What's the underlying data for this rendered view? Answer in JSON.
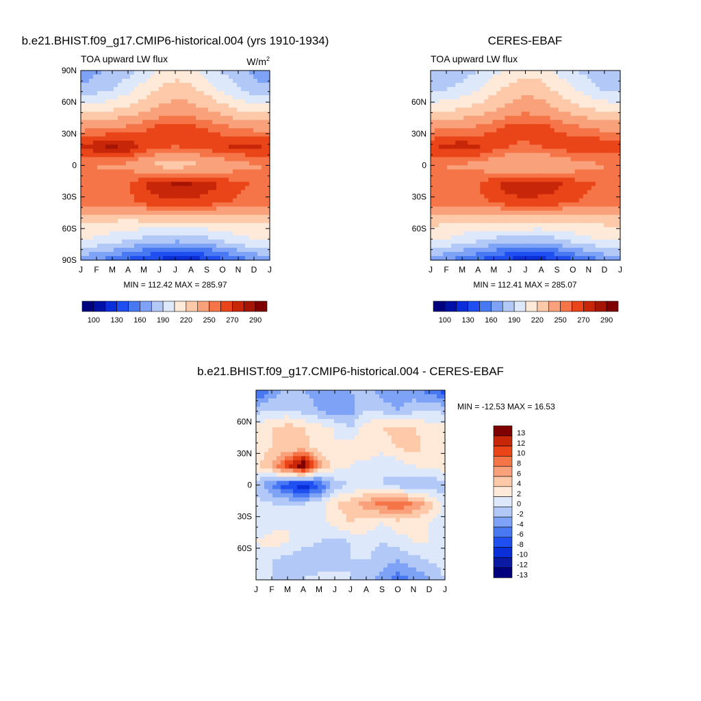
{
  "chart_data": [
    {
      "type": "heatmap",
      "id": "model",
      "title": "b.e21.BHIST.f09_g17.CMIP6-historical.004 (yrs 1910-1934)",
      "left_label": "TOA upward LW flux",
      "units_base": "W/m",
      "units_sup": "2",
      "stats": "MIN = 112.42 MAX = 285.97",
      "x_ticks": [
        "J",
        "F",
        "M",
        "A",
        "M",
        "J",
        "J",
        "A",
        "S",
        "O",
        "N",
        "D",
        "J"
      ],
      "y_ticks": [
        "90N",
        "60N",
        "30N",
        "0",
        "30S",
        "60S",
        "90S"
      ],
      "y_tick_values": [
        90,
        60,
        30,
        0,
        -30,
        -60,
        -90
      ],
      "colorbar_labels": [
        "100",
        "130",
        "160",
        "190",
        "220",
        "250",
        "270",
        "290"
      ],
      "field": [
        [
          165,
          172,
          178,
          185,
          195,
          205,
          212,
          208,
          198,
          188,
          180,
          170,
          165
        ],
        [
          178,
          183,
          190,
          200,
          212,
          222,
          228,
          225,
          214,
          202,
          192,
          182,
          178
        ],
        [
          212,
          214,
          218,
          222,
          230,
          238,
          242,
          240,
          234,
          226,
          218,
          213,
          212
        ],
        [
          246,
          247,
          249,
          252,
          258,
          263,
          265,
          263,
          259,
          254,
          249,
          246,
          246
        ],
        [
          270,
          278,
          282,
          278,
          268,
          262,
          260,
          262,
          266,
          270,
          272,
          271,
          270
        ],
        [
          250,
          249,
          248,
          246,
          238,
          230,
          228,
          230,
          234,
          240,
          245,
          248,
          250
        ],
        [
          258,
          258,
          257,
          260,
          270,
          278,
          283,
          282,
          276,
          268,
          262,
          259,
          258
        ],
        [
          255,
          254,
          255,
          257,
          262,
          265,
          267,
          266,
          264,
          261,
          258,
          256,
          255
        ],
        [
          222,
          220,
          218,
          216,
          218,
          219,
          220,
          219,
          218,
          219,
          221,
          222,
          222
        ],
        [
          205,
          200,
          195,
          188,
          182,
          178,
          176,
          177,
          182,
          190,
          198,
          203,
          205
        ],
        [
          165,
          160,
          152,
          142,
          132,
          125,
          118,
          120,
          128,
          140,
          150,
          160,
          165
        ]
      ]
    },
    {
      "type": "heatmap",
      "id": "obs",
      "title": "CERES-EBAF",
      "left_label": "TOA upward LW flux",
      "stats": "MIN = 112.41 MAX = 285.07",
      "x_ticks": [
        "J",
        "F",
        "M",
        "A",
        "M",
        "J",
        "J",
        "A",
        "S",
        "O",
        "N",
        "D",
        "J"
      ],
      "y_ticks": [
        "60N",
        "30N",
        "0",
        "30S",
        "60S"
      ],
      "y_tick_values": [
        60,
        30,
        0,
        -30,
        -60
      ],
      "colorbar_labels": [
        "100",
        "130",
        "160",
        "190",
        "220",
        "250",
        "270",
        "290"
      ],
      "field": [
        [
          175,
          178,
          182,
          190,
          200,
          210,
          215,
          212,
          202,
          192,
          185,
          178,
          175
        ],
        [
          186,
          190,
          196,
          205,
          215,
          225,
          230,
          227,
          217,
          206,
          196,
          189,
          186
        ],
        [
          214,
          216,
          220,
          225,
          232,
          240,
          245,
          242,
          235,
          227,
          220,
          215,
          214
        ],
        [
          246,
          247,
          249,
          252,
          258,
          263,
          266,
          264,
          259,
          254,
          249,
          246,
          246
        ],
        [
          268,
          274,
          276,
          272,
          265,
          260,
          258,
          260,
          264,
          268,
          270,
          269,
          268
        ],
        [
          250,
          249,
          248,
          246,
          240,
          234,
          232,
          234,
          238,
          242,
          246,
          249,
          250
        ],
        [
          258,
          258,
          257,
          260,
          268,
          276,
          280,
          278,
          273,
          266,
          261,
          259,
          258
        ],
        [
          254,
          253,
          254,
          256,
          261,
          264,
          266,
          265,
          263,
          260,
          257,
          255,
          254
        ],
        [
          224,
          222,
          220,
          218,
          219,
          220,
          221,
          220,
          219,
          220,
          222,
          223,
          224
        ],
        [
          206,
          202,
          196,
          190,
          184,
          180,
          178,
          179,
          184,
          192,
          200,
          204,
          206
        ],
        [
          166,
          160,
          153,
          143,
          133,
          126,
          119,
          121,
          129,
          141,
          151,
          161,
          166
        ]
      ]
    },
    {
      "type": "heatmap",
      "id": "diff",
      "title": "b.e21.BHIST.f09_g17.CMIP6-historical.004 - CERES-EBAF",
      "stats": "MIN = -12.53 MAX =  16.53",
      "x_ticks": [
        "J",
        "F",
        "M",
        "A",
        "M",
        "J",
        "J",
        "A",
        "S",
        "O",
        "N",
        "D",
        "J"
      ],
      "y_ticks": [
        "60N",
        "30N",
        "0",
        "30S",
        "60S"
      ],
      "y_tick_values": [
        60,
        30,
        0,
        -30,
        -60
      ],
      "colorbar_labels": [
        "13",
        "12",
        "10",
        "8",
        "6",
        "4",
        "2",
        "0",
        "-2",
        "-4",
        "-6",
        "-8",
        "-10",
        "-12",
        "-13"
      ],
      "field": [
        [
          -9,
          -6,
          -3,
          -4,
          -5,
          -5,
          -4,
          -3,
          -5,
          -6,
          -5,
          -7,
          -9
        ],
        [
          -3,
          -2,
          -2,
          -3,
          -4,
          -6,
          -5,
          -2,
          -3,
          -4,
          -3,
          -2,
          -3
        ],
        [
          1,
          2,
          3,
          2,
          1,
          0,
          -2,
          1,
          2,
          3,
          2,
          1,
          1
        ],
        [
          1,
          2,
          2,
          3,
          1,
          0,
          1,
          2,
          1,
          2,
          3,
          1,
          1
        ],
        [
          1,
          4,
          10,
          15,
          5,
          1,
          0,
          -1,
          -2,
          -1,
          0,
          1,
          1
        ],
        [
          -3,
          -6,
          -10,
          -12,
          -9,
          -3,
          -2,
          -1,
          -2,
          -3,
          -4,
          -4,
          -3
        ],
        [
          -1,
          -2,
          -2,
          -2,
          -1,
          2,
          3,
          5,
          7,
          8,
          6,
          3,
          -1
        ],
        [
          -1,
          -1,
          0,
          0,
          -1,
          1,
          2,
          1,
          0,
          1,
          1,
          0,
          -1
        ],
        [
          0,
          1,
          0,
          -1,
          -2,
          -3,
          -2,
          -1,
          -2,
          -1,
          0,
          0,
          0
        ],
        [
          -1,
          -2,
          -3,
          -4,
          -4,
          -3,
          -2,
          -2,
          -3,
          -4,
          -3,
          -2,
          -1
        ],
        [
          -2,
          -2,
          -3,
          -2,
          -1,
          -1,
          -2,
          -3,
          -5,
          -7,
          -6,
          -4,
          -2
        ]
      ]
    }
  ],
  "palettes": {
    "abs_levels": [
      100,
      115,
      130,
      145,
      160,
      175,
      190,
      205,
      220,
      235,
      250,
      260,
      270,
      280,
      290
    ],
    "abs_colors": [
      "#00007f",
      "#0011a8",
      "#0a2fd8",
      "#1f4ff0",
      "#4879f2",
      "#7ea3f6",
      "#b2c9f8",
      "#dde8fb",
      "#ffe9d9",
      "#fdc9a9",
      "#f9a17a",
      "#f57548",
      "#ea4518",
      "#c82608",
      "#a51502",
      "#7f0000"
    ],
    "diff_colors": [
      "#00007f",
      "#0a1aa3",
      "#0a2fd8",
      "#1f4ff0",
      "#4879f2",
      "#7ea3f6",
      "#b2c9f8",
      "#dde8fb",
      "#ffe9d9",
      "#fdc9a9",
      "#f9a17a",
      "#f57548",
      "#ea4518",
      "#c82608",
      "#7f0000"
    ]
  }
}
